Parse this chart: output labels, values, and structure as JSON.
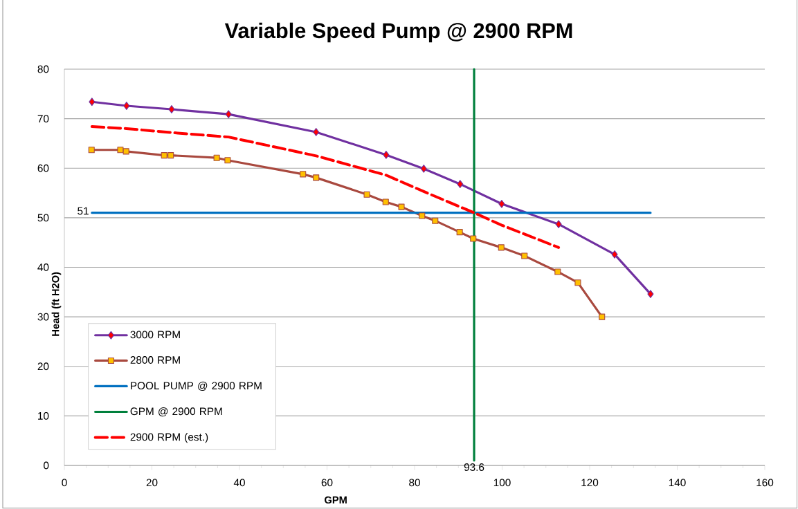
{
  "chart_data": {
    "type": "line",
    "title": "Variable Speed Pump @ 2900 RPM",
    "xlabel": "GPM",
    "ylabel": "Head (ft H2O)",
    "xlim": [
      0,
      160
    ],
    "xticks": [
      0,
      20,
      40,
      60,
      80,
      100,
      120,
      140,
      160
    ],
    "ylim": [
      0,
      80
    ],
    "yticks": [
      0,
      10,
      20,
      30,
      40,
      50,
      60,
      70,
      80
    ],
    "grid": "y",
    "legend": "bottom left",
    "series": [
      {
        "name": "3000 RPM",
        "color": "#7030a0",
        "marker": "diamond",
        "line_style": "solid",
        "x": [
          6.3,
          14.2,
          24.5,
          37.5,
          57.5,
          73.5,
          82.1,
          90.4,
          99.9,
          112.9,
          125.7,
          133.9
        ],
        "values": [
          73.4,
          72.6,
          71.9,
          70.9,
          67.3,
          62.7,
          59.9,
          56.8,
          52.8,
          48.7,
          42.6,
          34.6
        ]
      },
      {
        "name": "2800 RPM",
        "color": "#a9493f",
        "marker": "square",
        "line_style": "solid",
        "x": [
          6.2,
          12.8,
          14.1,
          22.8,
          24.3,
          34.8,
          37.3,
          54.5,
          57.5,
          69.1,
          73.4,
          77.0,
          81.7,
          84.7,
          90.3,
          93.4,
          99.8,
          105.1,
          112.7,
          117.3,
          122.8
        ],
        "values": [
          63.7,
          63.7,
          63.4,
          62.6,
          62.6,
          62.1,
          61.6,
          58.8,
          58.1,
          54.7,
          53.2,
          52.2,
          50.4,
          49.4,
          47.1,
          45.8,
          44.0,
          42.3,
          39.1,
          36.9,
          30.0
        ]
      },
      {
        "name": "POOL PUMP @ 2900 RPM",
        "color": "#0070c0",
        "marker": "none",
        "line_style": "solid",
        "x": [
          6.3,
          133.9
        ],
        "values": [
          51,
          51
        ]
      },
      {
        "name": "GPM @ 2900 RPM",
        "color": "#00803c",
        "marker": "none",
        "line_style": "solid",
        "x": [
          93.6,
          93.6
        ],
        "values": [
          1,
          80
        ]
      },
      {
        "name": "2900 RPM (est.)",
        "color": "#ff0000",
        "marker": "none",
        "line_style": "dashed",
        "x": [
          6.3,
          14.2,
          24.5,
          37.5,
          57.5,
          73.5,
          82.1,
          93.6,
          99.9,
          112.9
        ],
        "values": [
          68.4,
          68.0,
          67.2,
          66.3,
          62.5,
          58.6,
          55.3,
          51.0,
          48.5,
          44.0
        ]
      }
    ],
    "annotations": [
      {
        "text": "51",
        "x": 6.3,
        "y": 51
      },
      {
        "text": "93.6",
        "x": 93.6,
        "y": 1
      }
    ]
  }
}
